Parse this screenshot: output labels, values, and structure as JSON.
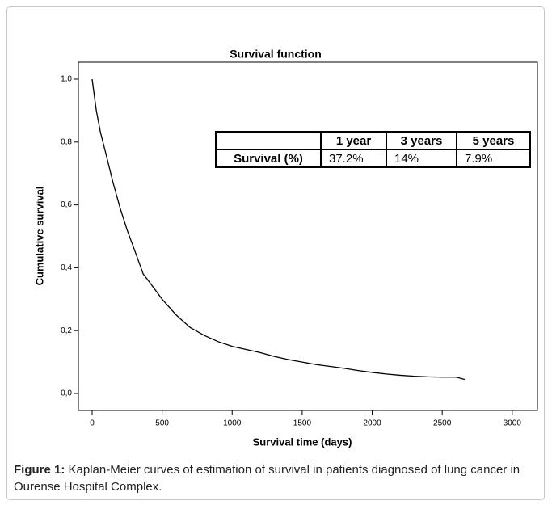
{
  "chart_data": {
    "type": "line",
    "title": "Survival function",
    "x_label": "Survival time (days)",
    "y_label": "Cumulative survival",
    "x": [
      0,
      30,
      60,
      100,
      150,
      200,
      250,
      300,
      365,
      400,
      500,
      600,
      700,
      800,
      900,
      1000,
      1100,
      1200,
      1300,
      1400,
      1500,
      1600,
      1700,
      1800,
      1900,
      2000,
      2100,
      2200,
      2300,
      2400,
      2500,
      2600,
      2660
    ],
    "series": [
      {
        "name": "Survival",
        "color": "#000000",
        "values": [
          1.0,
          0.9,
          0.83,
          0.76,
          0.67,
          0.59,
          0.52,
          0.46,
          0.38,
          0.36,
          0.3,
          0.25,
          0.21,
          0.185,
          0.165,
          0.15,
          0.14,
          0.13,
          0.118,
          0.108,
          0.1,
          0.092,
          0.086,
          0.08,
          0.073,
          0.067,
          0.062,
          0.058,
          0.055,
          0.053,
          0.052,
          0.052,
          0.045
        ]
      }
    ],
    "xlim": [
      -98,
      3180
    ],
    "ylim": [
      -0.054,
      1.054
    ],
    "xticks": [
      0,
      500,
      1000,
      1500,
      2000,
      2500,
      3000
    ],
    "yticks": [
      {
        "value": 0,
        "label": "0,0"
      },
      {
        "value": 0.2,
        "label": "0,2"
      },
      {
        "value": 0.4,
        "label": "0,4"
      },
      {
        "value": 0.6,
        "label": "0,6"
      },
      {
        "value": 0.8,
        "label": "0,8"
      },
      {
        "value": 1,
        "label": "1,0"
      }
    ],
    "table": {
      "header": [
        "1 year",
        "3 years",
        "5 years"
      ],
      "row_label": "Survival (%)",
      "cells": [
        "37.2%",
        "14%",
        "7.9%"
      ]
    }
  },
  "caption": {
    "label": "Figure 1:",
    "text": "Kaplan-Meier curves of estimation of survival in patients diagnosed of lung cancer in Ourense Hospital Complex."
  }
}
